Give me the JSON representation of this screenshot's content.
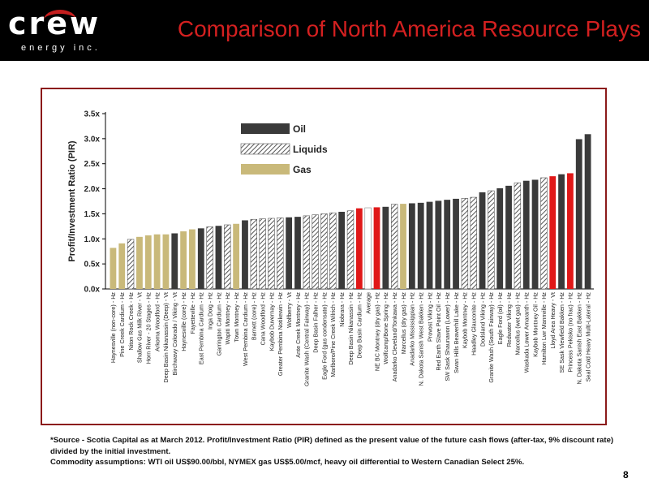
{
  "header": {
    "logo_word": "crew",
    "logo_sub": "energy inc.",
    "title": "Comparison of North America Resource Plays"
  },
  "colors": {
    "oil": "#3a3a3a",
    "liquids_stripe": "#555555",
    "gas": "#c9b97a",
    "highlight": "#e01818",
    "average": "#ffffff"
  },
  "chart_data": {
    "type": "bar",
    "title": "",
    "xlabel": "",
    "ylabel": "Profit/Investment Ratio (PIR)",
    "ylim": [
      0,
      3.5
    ],
    "yticks": [
      "0.0x",
      "0.5x",
      "1.0x",
      "1.5x",
      "2.0x",
      "2.5x",
      "3.0x",
      "3.5x"
    ],
    "grid": false,
    "legend_position": "top-center",
    "legend": [
      {
        "name": "Oil",
        "kind": "oil"
      },
      {
        "name": "Liquids",
        "kind": "liquids"
      },
      {
        "name": "Gas",
        "kind": "gas"
      }
    ],
    "categories": [
      "Haynesville (non-core) - Hz",
      "Pine Creek Cardium - Hz",
      "Niton Rock Creek - Hz",
      "Shallow Gas Milk River - Vt",
      "Horn River - 20 Stages - Hz",
      "Arkoma Woodford - Hz",
      "Deep Basin Nikanassin (Deep) - Vt",
      "Birchwavy Colorado / Viking - Vt",
      "Haynesville (core) - Hz",
      "Fayetteville - Hz",
      "East Pembina Cardium - Hz",
      "Inga Doig - Hz",
      "Garrington Cardium - Hz",
      "Wapiti Montney - Hz",
      "Town Montney - Hz",
      "West Pembina Cardium - Hz",
      "Barnett (core) - Hz",
      "Cana Woodford - Hz",
      "Kaybob Duvernay - Hz",
      "Greater Pembina Notikewin - Hz",
      "Wolfberry - Vt",
      "Ante Creek Montney - Hz",
      "Granite Wash (Central Fairway) - Hz",
      "Deep Basin Falher - Hz",
      "Eagle Ford (gas condensate) - Hz",
      "Marlboro/Pine Creek Wilrich - Hz",
      "Niobrara - Hz",
      "Deep Basin Nikanassin - Hz",
      "Deep Basin Cardium - Hz",
      "Average",
      "NE BC Montney (dry gas) - Hz",
      "Wolfcamp/Bone Spring - Hz",
      "Anadarko Cleveland/Tonkawa - Hz",
      "Marcellus (dry gas) - Hz",
      "Anadarko Mississippian - Hz",
      "N. Dakota Sanish West Bakken - Hz",
      "Provost Viking - Hz",
      "Red Earth Slave Point Oil - Hz",
      "SW Sask Shaunavon (Lower) - Hz",
      "Swan Hills Beaverhill Lake - Hz",
      "Kaybob Montney - Hz",
      "Haadley Glauconite - Hz",
      "Dodsland Viking - Hz",
      "Granite Wash (South Fairway) - Hz",
      "Eagle Ford (oil) - Hz",
      "Redwater Viking - Hz",
      "Marcellus (wet gas) - Hz",
      "Waskada Lower Amaranth - Hz",
      "Kaybob Montney Oil - Hz",
      "Hamilton Lwr Mannville - Hz",
      "Lloyd Area Heavy - Vt",
      "SE Sask Viewfield Bakken - Hz",
      "Princess Pekisko (no frac) - Hz",
      "N. Dakota Sanish East Bakken - Hz",
      "Seal Cold Heavy Multi-Lateral - Hz"
    ],
    "series": [
      {
        "values": [
          0.82,
          0.91,
          0.99,
          1.04,
          1.07,
          1.09,
          1.09,
          1.11,
          1.15,
          1.19,
          1.21,
          1.24,
          1.26,
          1.28,
          1.3,
          1.37,
          1.39,
          1.4,
          1.41,
          1.42,
          1.43,
          1.44,
          1.46,
          1.48,
          1.5,
          1.52,
          1.54,
          1.56,
          1.61,
          1.62,
          1.63,
          1.64,
          1.69,
          1.7,
          1.71,
          1.72,
          1.74,
          1.76,
          1.78,
          1.8,
          1.81,
          1.83,
          1.93,
          1.96,
          2.01,
          2.06,
          2.12,
          2.16,
          2.18,
          2.22,
          2.25,
          2.29,
          2.31,
          2.99,
          3.09
        ],
        "types": [
          "gas",
          "gas",
          "liquids",
          "gas",
          "gas",
          "gas",
          "gas",
          "oil",
          "gas",
          "gas",
          "oil",
          "liquids",
          "oil",
          "liquids",
          "gas",
          "oil",
          "liquids",
          "liquids",
          "liquids",
          "liquids",
          "oil",
          "oil",
          "liquids",
          "liquids",
          "liquids",
          "liquids",
          "oil",
          "liquids",
          "highlight",
          "average",
          "highlight",
          "oil",
          "liquids",
          "gas",
          "oil",
          "oil",
          "oil",
          "oil",
          "oil",
          "oil",
          "liquids",
          "liquids",
          "oil",
          "liquids",
          "oil",
          "oil",
          "liquids",
          "oil",
          "oil",
          "liquids",
          "highlight",
          "oil",
          "highlight",
          "oil",
          "oil"
        ]
      }
    ]
  },
  "footnote": {
    "line1": "*Source - Scotia Capital as at March 2012.  Profit/Investment Ratio (PIR) defined as the present value of the future cash flows (after-tax, 9% discount rate) divided by the initial investment.",
    "line2": "Commodity assumptions:  WTI oil US$90.00/bbl, NYMEX gas US$5.00/mcf, heavy oil differential to Western Canadian Select 25%."
  },
  "page": {
    "number": "8"
  }
}
